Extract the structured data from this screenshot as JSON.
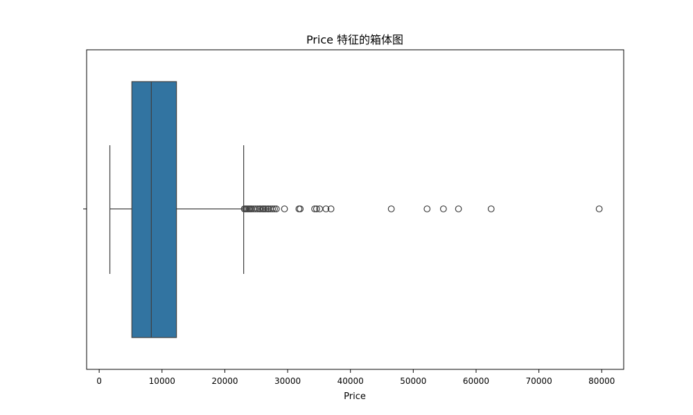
{
  "chart_data": {
    "type": "boxplot",
    "orientation": "horizontal",
    "title": "Price 特征的箱体图",
    "xlabel": "Price",
    "ylabel": "",
    "xlim": [
      -2000,
      83500
    ],
    "xticks": [
      0,
      10000,
      20000,
      30000,
      40000,
      50000,
      60000,
      70000,
      80000
    ],
    "xtick_labels": [
      "0",
      "10000",
      "20000",
      "30000",
      "40000",
      "50000",
      "60000",
      "70000",
      "80000"
    ],
    "grid": false,
    "color": "#3274a1",
    "box": {
      "whisker_low": 1700,
      "q1": 5200,
      "median": 8300,
      "q3": 12300,
      "whisker_high": 23000
    },
    "outliers": [
      23100,
      23300,
      23500,
      23700,
      23900,
      24100,
      24300,
      24600,
      24900,
      25200,
      25500,
      25700,
      26000,
      26200,
      26500,
      26800,
      27000,
      27300,
      27600,
      27900,
      28200,
      29500,
      31800,
      32000,
      34300,
      34600,
      35100,
      36100,
      36900,
      46500,
      52200,
      54800,
      57200,
      62400,
      79600
    ]
  }
}
